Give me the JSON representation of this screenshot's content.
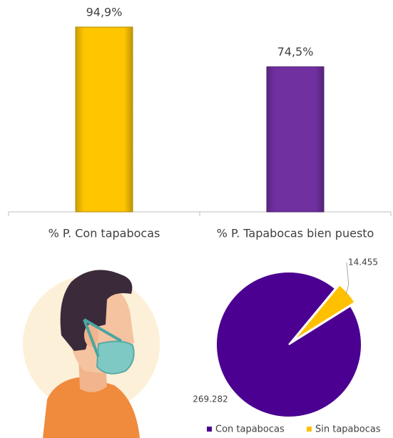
{
  "chart_data": [
    {
      "type": "bar",
      "categories": [
        "% P.  Con tapabocas",
        "% P. Tapabocas bien puesto"
      ],
      "values": [
        94.9,
        74.5
      ],
      "value_labels": [
        "94,9%",
        "74,5%"
      ],
      "colors": [
        "#ffc600",
        "#7030a0"
      ]
    },
    {
      "type": "pie",
      "categories": [
        "Con tapabocas",
        "Sin tapabocas"
      ],
      "values": [
        269282,
        14455
      ],
      "value_labels": [
        "269.282",
        "14.455"
      ],
      "colors": [
        "#4b0091",
        "#ffc000"
      ],
      "legend": "bottom"
    }
  ]
}
